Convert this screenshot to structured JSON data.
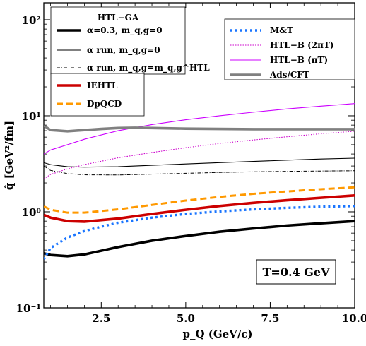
{
  "chart_data": {
    "type": "line",
    "title": "",
    "xlabel": "p_Q (GeV/c)",
    "ylabel": "q̂ [GeV²/fm]",
    "xlim": [
      0.8,
      10.0
    ],
    "ylim": [
      0.1,
      150
    ],
    "yscale": "log",
    "x_ticks": [
      2.5,
      5.0,
      7.5,
      10.0
    ],
    "x_tick_labels": [
      "2.5",
      "5.0",
      "7.5",
      "10.0"
    ],
    "y_ticks": [
      0.1,
      1,
      10,
      100
    ],
    "y_tick_labels": [
      "10⁻¹",
      "10⁰",
      "10¹",
      "10²"
    ],
    "grid": false,
    "annotation": "T=0.4 GeV",
    "legend_groups": [
      {
        "position": "top-left",
        "title": "HTL−GA",
        "entries": [
          0,
          1,
          2
        ]
      },
      {
        "position": "upper-left",
        "title": "",
        "entries": [
          3,
          4
        ]
      },
      {
        "position": "top-right",
        "title": "",
        "entries": [
          5,
          6,
          7,
          8
        ]
      }
    ],
    "series": [
      {
        "name": "α=0.3, m_q,g=0",
        "color": "#000000",
        "style": "solid-thick",
        "x": [
          0.8,
          1.0,
          1.5,
          2.0,
          3.0,
          4.0,
          5.0,
          6.0,
          7.0,
          8.0,
          9.0,
          10.0
        ],
        "y": [
          0.37,
          0.355,
          0.345,
          0.36,
          0.43,
          0.5,
          0.56,
          0.62,
          0.67,
          0.72,
          0.76,
          0.8
        ]
      },
      {
        "name": "α run, m_q,g=0",
        "color": "#000000",
        "style": "solid-thin",
        "x": [
          0.8,
          1.0,
          1.5,
          2.0,
          3.0,
          4.0,
          5.0,
          6.0,
          7.0,
          8.0,
          9.0,
          10.0
        ],
        "y": [
          3.25,
          3.1,
          2.95,
          2.92,
          2.95,
          3.05,
          3.15,
          3.25,
          3.35,
          3.45,
          3.55,
          3.62
        ]
      },
      {
        "name": "α run, m_q,g=m_q,g^HTL",
        "color": "#000000",
        "style": "dashdot-thin",
        "x": [
          0.8,
          1.0,
          1.5,
          2.0,
          3.0,
          4.0,
          5.0,
          6.0,
          7.0,
          8.0,
          9.0,
          10.0
        ],
        "y": [
          3.0,
          2.7,
          2.5,
          2.43,
          2.42,
          2.47,
          2.52,
          2.57,
          2.61,
          2.64,
          2.66,
          2.68
        ]
      },
      {
        "name": "IEHTL",
        "color": "#cc0000",
        "style": "solid-thick",
        "x": [
          0.8,
          1.0,
          1.5,
          2.0,
          3.0,
          4.0,
          5.0,
          6.0,
          7.0,
          8.0,
          9.0,
          10.0
        ],
        "y": [
          0.93,
          0.87,
          0.8,
          0.79,
          0.85,
          0.95,
          1.05,
          1.15,
          1.24,
          1.32,
          1.4,
          1.48
        ]
      },
      {
        "name": "DpQCD",
        "color": "#ff9900",
        "style": "dashed-thick",
        "x": [
          0.8,
          1.0,
          1.5,
          2.0,
          3.0,
          4.0,
          5.0,
          6.0,
          7.0,
          8.0,
          9.0,
          10.0
        ],
        "y": [
          1.14,
          1.05,
          0.98,
          0.98,
          1.06,
          1.18,
          1.31,
          1.43,
          1.54,
          1.63,
          1.72,
          1.8
        ]
      },
      {
        "name": "M&T",
        "color": "#1a75ff",
        "style": "dotted-thick",
        "x": [
          0.8,
          1.0,
          1.5,
          2.0,
          2.5,
          3.0,
          4.0,
          5.0,
          6.0,
          7.0,
          8.0,
          9.0,
          10.0
        ],
        "y": [
          0.32,
          0.42,
          0.54,
          0.63,
          0.7,
          0.77,
          0.87,
          0.95,
          1.01,
          1.06,
          1.1,
          1.13,
          1.15
        ]
      },
      {
        "name": "HTL−B (2πT)",
        "color": "#cc00cc",
        "style": "dotted-thin",
        "x": [
          0.8,
          1.0,
          1.5,
          2.0,
          3.0,
          4.0,
          5.0,
          6.0,
          7.0,
          8.0,
          9.0,
          10.0
        ],
        "y": [
          2.2,
          2.45,
          2.8,
          3.1,
          3.65,
          4.15,
          4.65,
          5.15,
          5.6,
          6.05,
          6.5,
          6.9
        ]
      },
      {
        "name": "HTL−B (πT)",
        "color": "#cc00ff",
        "style": "solid-thin",
        "x": [
          0.8,
          1.0,
          1.5,
          2.0,
          3.0,
          4.0,
          5.0,
          6.0,
          7.0,
          8.0,
          9.0,
          10.0
        ],
        "y": [
          4.0,
          4.4,
          5.0,
          5.7,
          7.0,
          8.1,
          9.1,
          10.0,
          10.9,
          11.8,
          12.6,
          13.4
        ]
      },
      {
        "name": "Ads/CFT",
        "color": "#808080",
        "style": "solid-thick",
        "x": [
          0.8,
          1.0,
          1.5,
          2.0,
          2.5,
          3.0,
          3.5,
          4.0,
          5.0,
          6.0,
          7.0,
          8.0,
          9.0,
          10.0
        ],
        "y": [
          7.9,
          7.1,
          6.9,
          7.1,
          7.3,
          7.45,
          7.5,
          7.45,
          7.35,
          7.3,
          7.25,
          7.25,
          7.25,
          7.25
        ]
      }
    ]
  }
}
